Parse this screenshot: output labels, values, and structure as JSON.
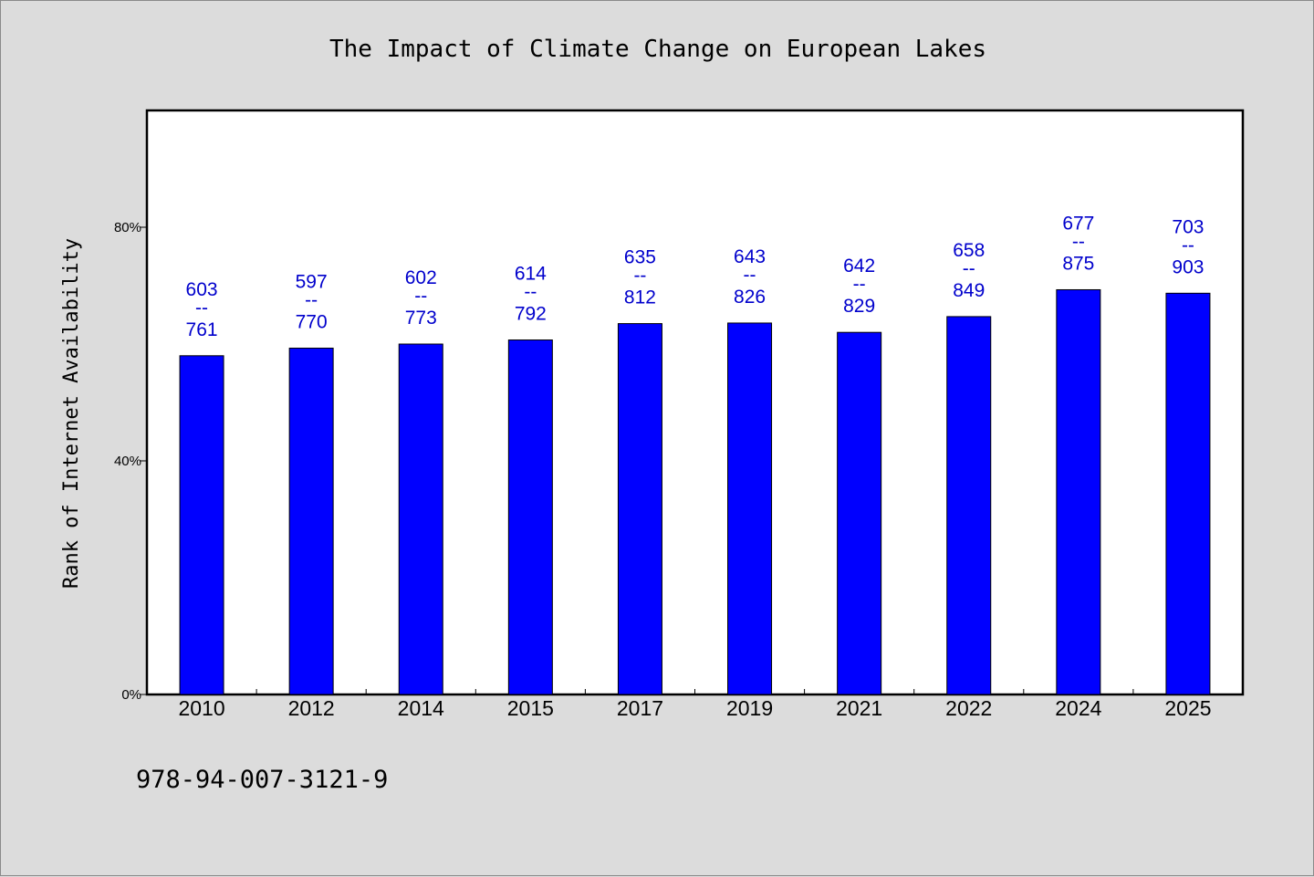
{
  "chart_data": {
    "type": "bar",
    "title": "The Impact of Climate Change on European Lakes",
    "ylabel": "Rank of Internet Availability",
    "xlabel": "",
    "ylim": [
      0,
      100
    ],
    "yticks": [
      0,
      40,
      80
    ],
    "ytick_labels": [
      "0%",
      "40%",
      "80%"
    ],
    "grid": false,
    "legend": "none",
    "bar_color": "#0000ff",
    "label_color": "#0000cc",
    "categories": [
      "2010",
      "2012",
      "2014",
      "2015",
      "2017",
      "2019",
      "2021",
      "2022",
      "2024",
      "2025"
    ],
    "values": [
      58.0,
      59.3,
      60.0,
      60.7,
      63.5,
      63.6,
      62.0,
      64.7,
      69.3,
      68.7
    ],
    "data_labels": [
      {
        "top": "603",
        "sep": "--",
        "bottom": "761"
      },
      {
        "top": "597",
        "sep": "--",
        "bottom": "770"
      },
      {
        "top": "602",
        "sep": "--",
        "bottom": "773"
      },
      {
        "top": "614",
        "sep": "--",
        "bottom": "792"
      },
      {
        "top": "635",
        "sep": "--",
        "bottom": "812"
      },
      {
        "top": "643",
        "sep": "--",
        "bottom": "826"
      },
      {
        "top": "642",
        "sep": "--",
        "bottom": "829"
      },
      {
        "top": "658",
        "sep": "--",
        "bottom": "849"
      },
      {
        "top": "677",
        "sep": "--",
        "bottom": "875"
      },
      {
        "top": "703",
        "sep": "--",
        "bottom": "903"
      }
    ]
  },
  "footnote": "978-94-007-3121-9"
}
